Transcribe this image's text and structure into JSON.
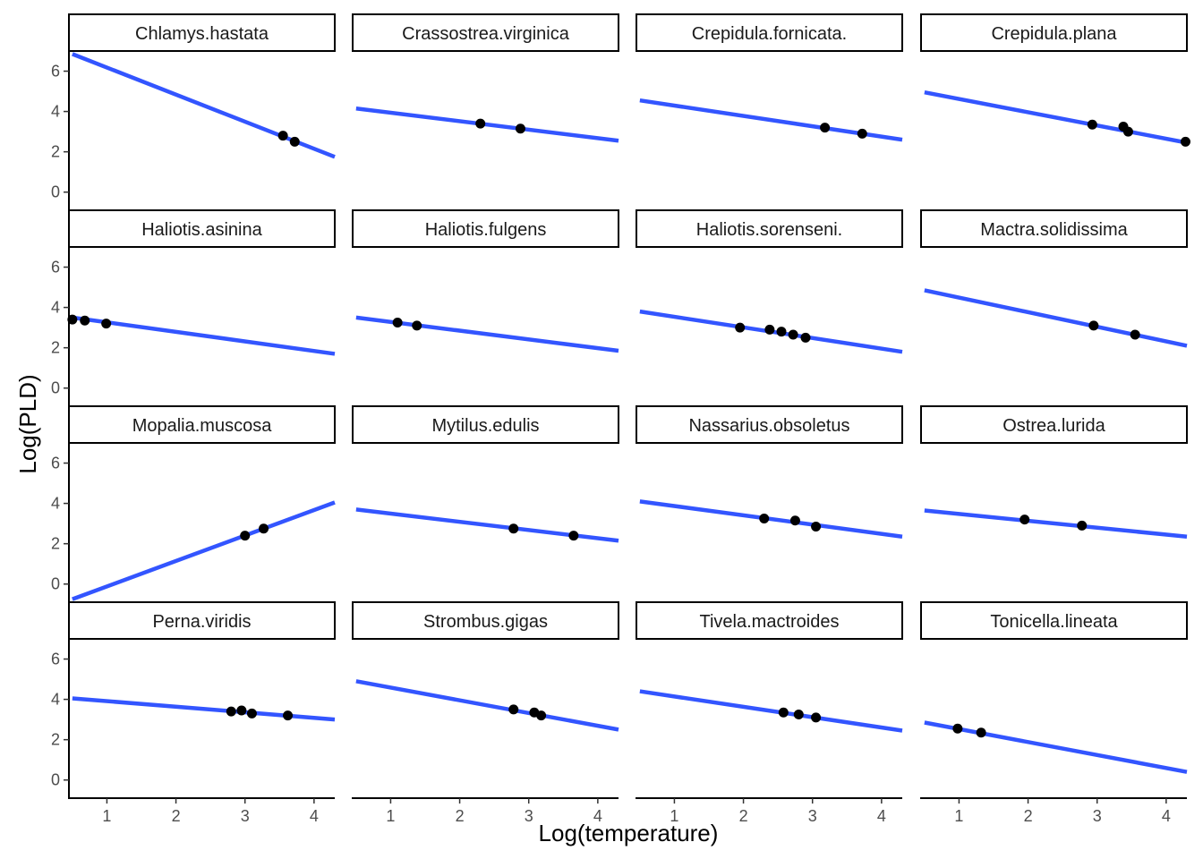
{
  "chart_data": {
    "type": "scatter",
    "facet_type": "faceted scatter with linear fit",
    "xlabel": "Log(temperature)",
    "ylabel": "Log(PLD)",
    "xlim": [
      0.45,
      4.3
    ],
    "ylim": [
      -0.9,
      7.0
    ],
    "x_ticks": [
      1,
      2,
      3,
      4
    ],
    "y_ticks": [
      0,
      2,
      4,
      6
    ],
    "grid": false,
    "colors": {
      "fit_line": "#3355ff",
      "points": "#000000",
      "strip_border": "#000000",
      "strip_fill": "#ffffff"
    },
    "panels": [
      {
        "name": "Chlamys.hastata",
        "fit": [
          [
            0.5,
            6.85
          ],
          [
            4.3,
            1.75
          ]
        ],
        "points": [
          [
            3.55,
            2.8
          ],
          [
            3.72,
            2.5
          ]
        ]
      },
      {
        "name": "Crassostrea.virginica",
        "fit": [
          [
            0.5,
            4.15
          ],
          [
            4.3,
            2.55
          ]
        ],
        "points": [
          [
            2.3,
            3.4
          ],
          [
            2.88,
            3.15
          ]
        ]
      },
      {
        "name": "Crepidula.fornicata.",
        "fit": [
          [
            0.5,
            4.55
          ],
          [
            4.3,
            2.6
          ]
        ],
        "points": [
          [
            3.18,
            3.2
          ],
          [
            3.72,
            2.9
          ]
        ]
      },
      {
        "name": "Crepidula.plana",
        "fit": [
          [
            0.5,
            4.95
          ],
          [
            4.3,
            2.45
          ]
        ],
        "points": [
          [
            2.93,
            3.35
          ],
          [
            3.38,
            3.25
          ],
          [
            3.45,
            3.0
          ],
          [
            4.28,
            2.5
          ]
        ]
      },
      {
        "name": "Haliotis.asinina",
        "fit": [
          [
            0.5,
            3.5
          ],
          [
            4.3,
            1.7
          ]
        ],
        "points": [
          [
            0.5,
            3.4
          ],
          [
            0.68,
            3.35
          ],
          [
            0.99,
            3.2
          ]
        ]
      },
      {
        "name": "Haliotis.fulgens",
        "fit": [
          [
            0.5,
            3.5
          ],
          [
            4.3,
            1.85
          ]
        ],
        "points": [
          [
            1.1,
            3.25
          ],
          [
            1.38,
            3.1
          ]
        ]
      },
      {
        "name": "Haliotis.sorenseni.",
        "fit": [
          [
            0.5,
            3.8
          ],
          [
            4.3,
            1.8
          ]
        ],
        "points": [
          [
            1.95,
            3.0
          ],
          [
            2.38,
            2.9
          ],
          [
            2.55,
            2.8
          ],
          [
            2.72,
            2.65
          ],
          [
            2.9,
            2.5
          ]
        ]
      },
      {
        "name": "Mactra.solidissima",
        "fit": [
          [
            0.5,
            4.85
          ],
          [
            4.3,
            2.1
          ]
        ],
        "points": [
          [
            2.95,
            3.1
          ],
          [
            3.55,
            2.65
          ]
        ]
      },
      {
        "name": "Mopalia.muscosa",
        "fit": [
          [
            0.5,
            -0.75
          ],
          [
            4.3,
            4.05
          ]
        ],
        "points": [
          [
            3.0,
            2.4
          ],
          [
            3.27,
            2.75
          ]
        ]
      },
      {
        "name": "Mytilus.edulis",
        "fit": [
          [
            0.5,
            3.7
          ],
          [
            4.3,
            2.15
          ]
        ],
        "points": [
          [
            2.78,
            2.75
          ],
          [
            3.65,
            2.4
          ]
        ]
      },
      {
        "name": "Nassarius.obsoletus",
        "fit": [
          [
            0.5,
            4.1
          ],
          [
            4.3,
            2.35
          ]
        ],
        "points": [
          [
            2.3,
            3.25
          ],
          [
            2.75,
            3.15
          ],
          [
            3.05,
            2.85
          ]
        ]
      },
      {
        "name": "Ostrea.lurida",
        "fit": [
          [
            0.5,
            3.65
          ],
          [
            4.3,
            2.35
          ]
        ],
        "points": [
          [
            1.95,
            3.2
          ],
          [
            2.78,
            2.9
          ]
        ]
      },
      {
        "name": "Perna.viridis",
        "fit": [
          [
            0.5,
            4.05
          ],
          [
            4.3,
            3.0
          ]
        ],
        "points": [
          [
            2.8,
            3.4
          ],
          [
            2.95,
            3.45
          ],
          [
            3.1,
            3.3
          ],
          [
            3.62,
            3.2
          ]
        ]
      },
      {
        "name": "Strombus.gigas",
        "fit": [
          [
            0.5,
            4.9
          ],
          [
            4.3,
            2.5
          ]
        ],
        "points": [
          [
            2.78,
            3.5
          ],
          [
            3.08,
            3.35
          ],
          [
            3.18,
            3.2
          ]
        ]
      },
      {
        "name": "Tivela.mactroides",
        "fit": [
          [
            0.5,
            4.4
          ],
          [
            4.3,
            2.45
          ]
        ],
        "points": [
          [
            2.58,
            3.35
          ],
          [
            2.8,
            3.25
          ],
          [
            3.05,
            3.1
          ]
        ]
      },
      {
        "name": "Tonicella.lineata",
        "fit": [
          [
            0.5,
            2.85
          ],
          [
            4.3,
            0.4
          ]
        ],
        "points": [
          [
            0.98,
            2.55
          ],
          [
            1.32,
            2.35
          ]
        ]
      }
    ]
  }
}
